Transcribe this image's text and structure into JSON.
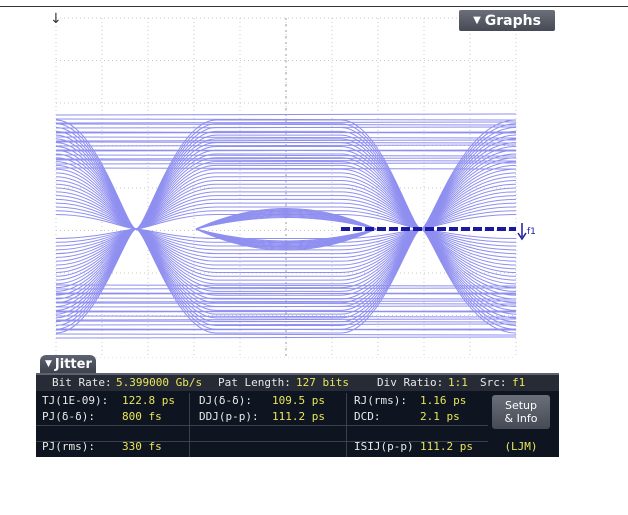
{
  "toolbar": {
    "graphs_label": "Graphs",
    "trigger_symbol": "↓"
  },
  "marker": {
    "label": "f1"
  },
  "colors": {
    "trace": "#8f8ff0",
    "panel_bg": "#0e1420",
    "value": "#e9e65a",
    "grid": "#c8c8c8"
  },
  "panel": {
    "tab_label": "Jitter",
    "bit_rate_label": "Bit Rate:",
    "bit_rate_value": "5.399000 Gb/s",
    "pat_length_label": "Pat Length:",
    "pat_length_value": "127 bits",
    "div_ratio_label": "Div Ratio:",
    "div_ratio_value": "1:1",
    "src_label": "Src:",
    "src_value": "f1",
    "measurements": [
      {
        "label": "TJ(1E-09):",
        "value": "122.8 ps"
      },
      {
        "label": "DJ(δ-δ):",
        "value": "109.5 ps"
      },
      {
        "label": "RJ(rms):",
        "value": "1.16 ps"
      },
      {
        "label": "PJ(δ-δ):",
        "value": "800 fs"
      },
      {
        "label": "DDJ(p-p):",
        "value": "111.2 ps"
      },
      {
        "label": "DCD:",
        "value": "2.1 ps"
      },
      {
        "label": "PJ(rms):",
        "value": "330 fs"
      },
      {
        "label": "ISIJ(p-p)",
        "value": "111.2 ps"
      }
    ],
    "setup_label_1": "Setup",
    "setup_label_2": "& Info",
    "ljm_label": "(LJM)"
  }
}
